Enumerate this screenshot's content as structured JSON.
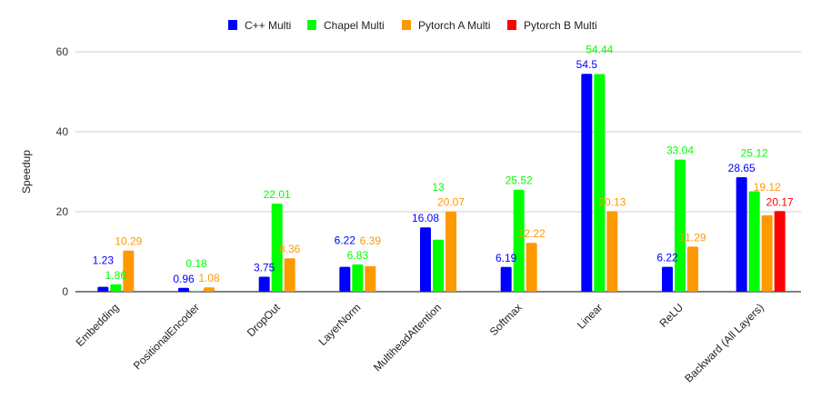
{
  "chart_data": {
    "type": "bar",
    "title": "",
    "xlabel": "",
    "ylabel": "Speedup",
    "ylim": [
      0,
      60
    ],
    "yticks": [
      0,
      20,
      40,
      60
    ],
    "grid": true,
    "legend_position": "top",
    "categories": [
      "Embedding",
      "PositionalEncoder",
      "DropOut",
      "LayerNorm",
      "MultiheadAttention",
      "Softmax",
      "Linear",
      "ReLU",
      "Backward (All Layers)"
    ],
    "series": [
      {
        "name": "C++ Multi",
        "color": "#0000ff",
        "values": [
          1.23,
          0.96,
          3.75,
          6.22,
          16.08,
          6.19,
          54.5,
          6.22,
          28.65
        ]
      },
      {
        "name": "Chapel Multi",
        "color": "#00ff00",
        "values": [
          1.86,
          0.18,
          22.01,
          6.83,
          13,
          25.52,
          54.44,
          33.04,
          25.12
        ]
      },
      {
        "name": "Pytorch A Multi",
        "color": "#ff9900",
        "values": [
          10.29,
          1.08,
          8.36,
          6.39,
          20.07,
          12.22,
          20.13,
          11.29,
          19.12
        ]
      },
      {
        "name": "Pytorch B Multi",
        "color": "#ff0000",
        "values": [
          null,
          null,
          null,
          null,
          null,
          null,
          null,
          null,
          20.17
        ]
      }
    ]
  }
}
